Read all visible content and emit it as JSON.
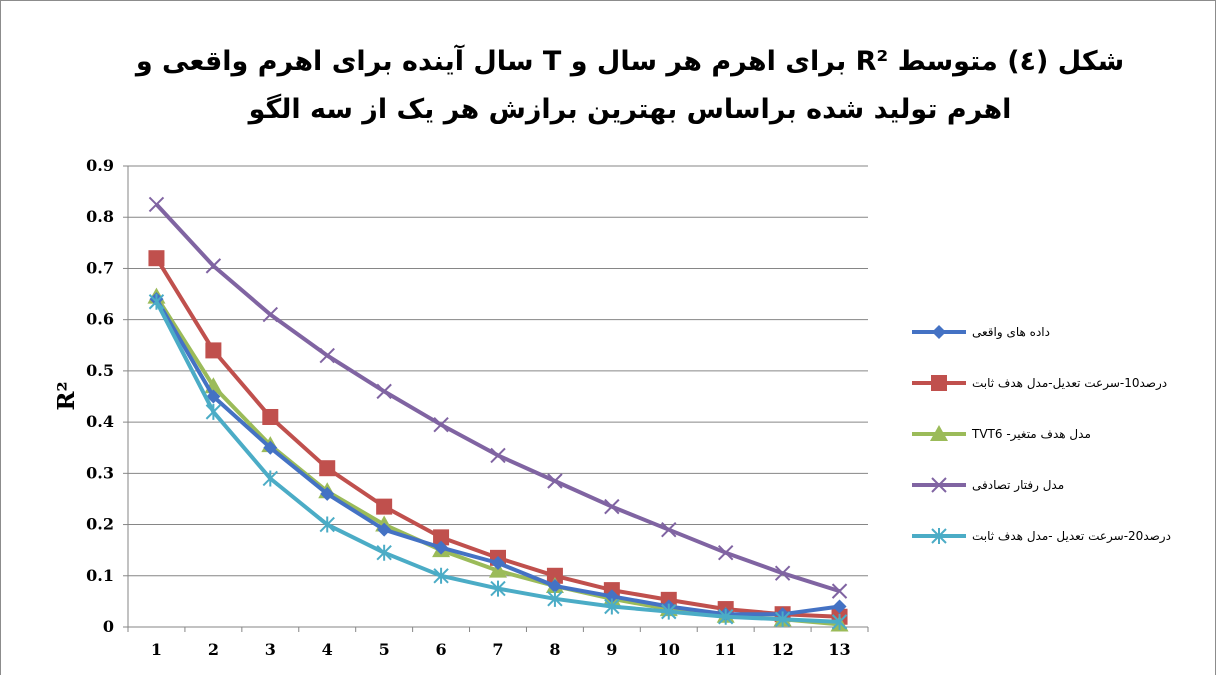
{
  "chart_data": {
    "type": "line",
    "title": "شكل (٤) متوسط R² برای اهرم هر سال و T سال آینده  برای اهرم واقعی و اهرم تولید شده براساس بهترین برازش هر یک از سه الگو",
    "ylabel": "R²",
    "xlabel": "",
    "ylim": [
      0,
      0.9
    ],
    "ytick_labels": [
      "0",
      "0.1",
      "0.2",
      "0.3",
      "0.4",
      "0.5",
      "0.6",
      "0.7",
      "0.8",
      "0.9"
    ],
    "x": [
      1,
      2,
      3,
      4,
      5,
      6,
      7,
      8,
      9,
      10,
      11,
      12,
      13
    ],
    "grid": "horizontal",
    "legend_position": "right",
    "series": [
      {
        "name": "داده های واقعی",
        "color": "#4472C4",
        "marker": "diamond",
        "values": [
          0.64,
          0.45,
          0.35,
          0.26,
          0.19,
          0.155,
          0.125,
          0.08,
          0.06,
          0.04,
          0.025,
          0.025,
          0.04
        ]
      },
      {
        "name": "درصد10-سرعت تعدیل-مدل هدف ثابت",
        "color": "#C0504D",
        "marker": "square",
        "values": [
          0.72,
          0.54,
          0.41,
          0.31,
          0.235,
          0.175,
          0.135,
          0.1,
          0.072,
          0.053,
          0.035,
          0.025,
          0.02
        ]
      },
      {
        "name": "TVT6 -مدل هدف متغیر",
        "color": "#9BBB59",
        "marker": "triangle",
        "values": [
          0.645,
          0.47,
          0.355,
          0.265,
          0.2,
          0.15,
          0.11,
          0.08,
          0.055,
          0.035,
          0.022,
          0.015,
          0.005
        ]
      },
      {
        "name": "مدل رفتار تصادفی",
        "color": "#8064A2",
        "marker": "x",
        "values": [
          0.825,
          0.705,
          0.61,
          0.53,
          0.46,
          0.395,
          0.335,
          0.285,
          0.235,
          0.19,
          0.145,
          0.105,
          0.07
        ]
      },
      {
        "name": "درصد20-سرعت تعدیل -مدل هدف ثابت",
        "color": "#4BACC6",
        "marker": "star",
        "values": [
          0.635,
          0.42,
          0.29,
          0.2,
          0.145,
          0.1,
          0.075,
          0.055,
          0.04,
          0.03,
          0.02,
          0.015,
          0.01
        ]
      }
    ]
  }
}
